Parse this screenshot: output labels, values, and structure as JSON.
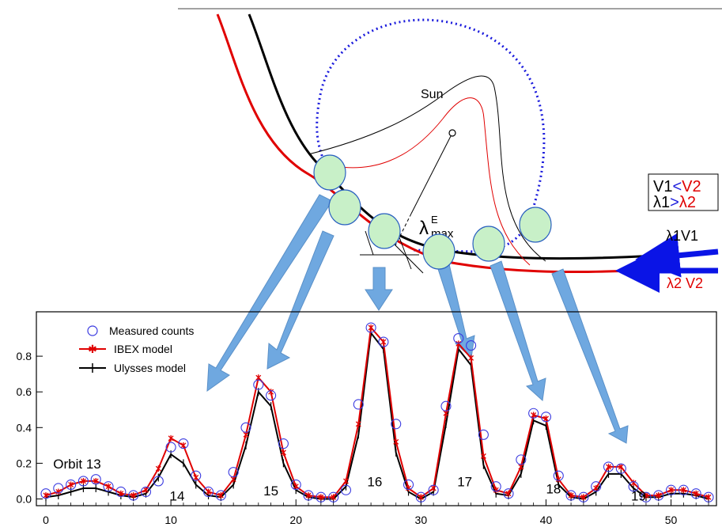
{
  "diagram": {
    "sun_label": "Sun",
    "lambda_main": "λ",
    "lambda_sub": "max",
    "lambda_sup": "E",
    "box_line1_a": "V1",
    "box_line1_op": "<",
    "box_line1_b": "V2",
    "box_line2_a": "λ1",
    "box_line2_op": ">",
    "box_line2_b": "λ2",
    "arrow1_label": "λ1V1",
    "arrow2_label": "λ2 V2",
    "colors": {
      "ulysses": "#000000",
      "ibex": "#ff0000",
      "orbit": "#1a1adc",
      "spots": "#c8f0c8",
      "arrows": "#6fa8e0",
      "inflow_arrow": "#0a14e6"
    }
  },
  "chart_data": {
    "type": "line",
    "xlim": [
      0,
      53
    ],
    "ylim": [
      -0.02,
      1.0
    ],
    "xticks": [
      0,
      10,
      20,
      30,
      40,
      50
    ],
    "yticks": [
      0.0,
      0.2,
      0.4,
      0.6,
      0.8
    ],
    "grid": false,
    "legend_position": "top-left",
    "x": [
      0,
      1,
      2,
      3,
      4,
      5,
      6,
      7,
      8,
      9,
      10,
      11,
      12,
      13,
      14,
      15,
      16,
      17,
      18,
      19,
      20,
      21,
      22,
      23,
      24,
      25,
      26,
      27,
      28,
      29,
      30,
      31,
      32,
      33,
      34,
      35,
      36,
      37,
      38,
      39,
      40,
      41,
      42,
      43,
      44,
      45,
      46,
      47,
      48,
      49,
      50,
      51,
      52,
      53
    ],
    "series": [
      {
        "name": "Measured counts",
        "style": "circles",
        "values": [
          0.03,
          0.06,
          0.08,
          0.1,
          0.11,
          0.07,
          0.04,
          0.02,
          0.04,
          0.1,
          0.29,
          0.31,
          0.13,
          0.04,
          0.02,
          0.15,
          0.4,
          0.64,
          0.58,
          0.31,
          0.08,
          0.02,
          0.01,
          0.01,
          0.05,
          0.53,
          0.96,
          0.88,
          0.42,
          0.08,
          0.01,
          0.05,
          0.52,
          0.9,
          0.86,
          0.36,
          0.07,
          0.03,
          0.22,
          0.48,
          0.46,
          0.13,
          0.02,
          0.01,
          0.07,
          0.18,
          0.17,
          0.07,
          0.01,
          0.02,
          0.05,
          0.05,
          0.03,
          0.01
        ]
      },
      {
        "name": "IBEX model",
        "style": "red-star",
        "values": [
          0.02,
          0.04,
          0.08,
          0.1,
          0.1,
          0.07,
          0.03,
          0.02,
          0.05,
          0.17,
          0.34,
          0.3,
          0.12,
          0.04,
          0.02,
          0.11,
          0.36,
          0.68,
          0.6,
          0.26,
          0.07,
          0.02,
          0.01,
          0.01,
          0.1,
          0.42,
          0.96,
          0.88,
          0.32,
          0.06,
          0.01,
          0.06,
          0.48,
          0.87,
          0.79,
          0.24,
          0.05,
          0.03,
          0.18,
          0.47,
          0.45,
          0.11,
          0.02,
          0.01,
          0.06,
          0.18,
          0.18,
          0.09,
          0.02,
          0.02,
          0.05,
          0.05,
          0.03,
          0.01
        ]
      },
      {
        "name": "Ulysses model",
        "style": "black-plus",
        "values": [
          0.01,
          0.02,
          0.04,
          0.06,
          0.06,
          0.04,
          0.02,
          0.01,
          0.03,
          0.12,
          0.25,
          0.2,
          0.08,
          0.02,
          0.01,
          0.08,
          0.3,
          0.6,
          0.52,
          0.2,
          0.05,
          0.01,
          0.0,
          0.0,
          0.07,
          0.36,
          0.93,
          0.84,
          0.26,
          0.04,
          0.0,
          0.04,
          0.42,
          0.84,
          0.75,
          0.19,
          0.03,
          0.02,
          0.14,
          0.44,
          0.41,
          0.08,
          0.01,
          0.0,
          0.04,
          0.14,
          0.14,
          0.06,
          0.01,
          0.01,
          0.03,
          0.03,
          0.02,
          0.0
        ]
      }
    ],
    "annotations": [
      {
        "text": "Orbit 13",
        "x": 2.5,
        "y": 0.17
      },
      {
        "text": "14",
        "x": 10.5,
        "y": -0.01
      },
      {
        "text": "15",
        "x": 18.0,
        "y": 0.02
      },
      {
        "text": "16",
        "x": 26.3,
        "y": 0.07
      },
      {
        "text": "17",
        "x": 33.5,
        "y": 0.07
      },
      {
        "text": "18",
        "x": 40.6,
        "y": 0.03
      },
      {
        "text": "19",
        "x": 47.4,
        "y": -0.01
      }
    ]
  }
}
